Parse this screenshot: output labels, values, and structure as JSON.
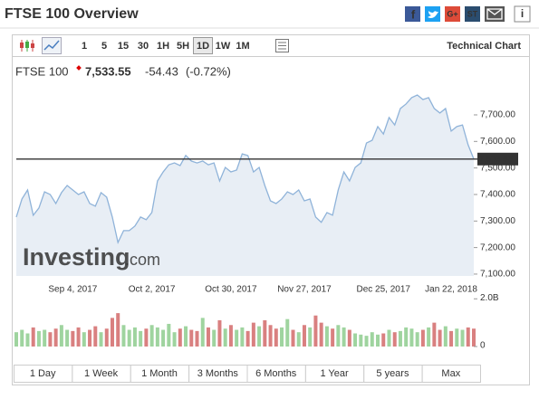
{
  "header": {
    "title": "FTSE 100 Overview",
    "icon_labels": [
      "f",
      "G+",
      "ST",
      "i"
    ]
  },
  "toolbar": {
    "ranges": [
      "1",
      "5",
      "15",
      "30",
      "1H",
      "5H",
      "1D",
      "1W",
      "1M"
    ],
    "active": 6,
    "link": "Technical Chart"
  },
  "quote": {
    "name": "FTSE 100",
    "price": "7,533.55",
    "change": "-54.43",
    "change_pct": "(-0.72%)"
  },
  "watermark": {
    "brand": "Investing",
    "suffix": ".com"
  },
  "chart_data": [
    {
      "type": "area",
      "color": "#8fb3d9",
      "fill": "#e8eef5",
      "categories": [
        null,
        null,
        null,
        null,
        null,
        null,
        null,
        null,
        null,
        null,
        "Sep 4, 2017",
        null,
        null,
        null,
        null,
        null,
        null,
        null,
        null,
        null,
        null,
        null,
        null,
        null,
        "Oct 2, 2017",
        null,
        null,
        null,
        null,
        null,
        null,
        null,
        null,
        null,
        null,
        null,
        null,
        null,
        "Oct 30, 2017",
        null,
        null,
        null,
        null,
        null,
        null,
        null,
        null,
        null,
        null,
        null,
        null,
        "Nov 27, 2017",
        null,
        null,
        null,
        null,
        null,
        null,
        null,
        null,
        null,
        null,
        null,
        null,
        null,
        "Dec 25, 2017",
        null,
        null,
        null,
        null,
        null,
        null,
        null,
        null,
        null,
        null,
        null,
        "Jan 22, 2018",
        null,
        null,
        null,
        null
      ],
      "values": [
        7315,
        7383,
        7417,
        7322,
        7349,
        7410,
        7400,
        7366,
        7407,
        7434,
        7417,
        7400,
        7410,
        7366,
        7356,
        7407,
        7390,
        7315,
        7219,
        7264,
        7264,
        7281,
        7315,
        7305,
        7332,
        7451,
        7485,
        7512,
        7519,
        7509,
        7547,
        7526,
        7519,
        7526,
        7512,
        7519,
        7451,
        7502,
        7485,
        7492,
        7553,
        7547,
        7485,
        7502,
        7434,
        7376,
        7366,
        7383,
        7410,
        7400,
        7417,
        7376,
        7383,
        7315,
        7295,
        7332,
        7322,
        7417,
        7485,
        7451,
        7502,
        7519,
        7594,
        7604,
        7656,
        7628,
        7690,
        7662,
        7724,
        7741,
        7765,
        7775,
        7758,
        7765,
        7724,
        7707,
        7724,
        7639,
        7656,
        7662,
        7587,
        7533.55
      ],
      "ylim": [
        7093,
        7792
      ],
      "yticks": [
        {
          "value": 7100,
          "label": "7,100.00"
        },
        {
          "value": 7200,
          "label": "7,200.00"
        },
        {
          "value": 7300,
          "label": "7,300.00"
        },
        {
          "value": 7400,
          "label": "7,400.00"
        },
        {
          "value": 7500,
          "label": "7,500.00"
        },
        {
          "value": 7600,
          "label": "7,600.00"
        },
        {
          "value": 7700,
          "label": "7,700.00"
        }
      ],
      "reference_line": {
        "value": 7533.55,
        "label": "7,533.55"
      }
    },
    {
      "type": "bar",
      "up_color": "#9fd49f",
      "down_color": "#d98080",
      "values": [
        0.6,
        0.7,
        0.55,
        0.8,
        0.65,
        0.7,
        0.6,
        0.75,
        0.9,
        0.7,
        0.65,
        0.8,
        0.6,
        0.7,
        0.85,
        0.6,
        0.75,
        1.2,
        1.4,
        0.9,
        0.7,
        0.8,
        0.65,
        0.75,
        0.9,
        0.8,
        0.7,
        0.95,
        0.6,
        0.75,
        0.85,
        0.7,
        0.65,
        1.2,
        0.8,
        0.7,
        1.1,
        0.75,
        0.9,
        0.7,
        0.8,
        0.65,
        1.0,
        0.85,
        1.1,
        0.9,
        0.75,
        0.8,
        1.15,
        0.7,
        0.6,
        0.9,
        0.8,
        1.3,
        1.0,
        0.85,
        0.75,
        0.9,
        0.8,
        0.7,
        0.55,
        0.5,
        0.45,
        0.6,
        0.5,
        0.55,
        0.7,
        0.6,
        0.65,
        0.8,
        0.75,
        0.6,
        0.7,
        0.8,
        1.0,
        0.7,
        0.85,
        0.65,
        0.75,
        0.7,
        0.8,
        0.75
      ],
      "ylim": [
        0,
        2.2
      ],
      "yticks": [
        0,
        {
          "value": 2,
          "label": "2.0B"
        }
      ]
    }
  ],
  "range_tabs": [
    "1 Day",
    "1 Week",
    "1 Month",
    "3 Months",
    "6 Months",
    "1 Year",
    "5 years",
    "Max"
  ]
}
